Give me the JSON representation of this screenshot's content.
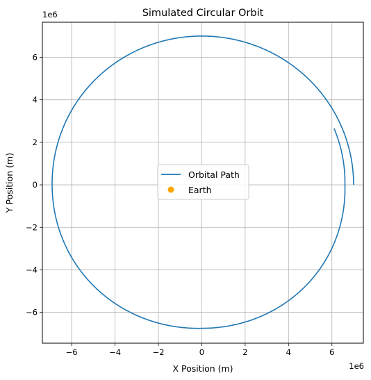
{
  "chart_data": {
    "type": "line",
    "title": "Simulated Circular Orbit",
    "xlabel": "X Position (m)",
    "ylabel": "Y Position (m)",
    "x_offset_text": "1e6",
    "y_offset_text": "1e6",
    "xlim": [
      -7.35,
      7.45
    ],
    "ylim": [
      -7.45,
      7.65
    ],
    "xticks": [
      -6,
      -4,
      -2,
      0,
      2,
      4,
      6
    ],
    "yticks": [
      -6,
      -4,
      -2,
      0,
      2,
      4,
      6
    ],
    "xtick_labels": [
      "−6",
      "−4",
      "−2",
      "0",
      "2",
      "4",
      "6"
    ],
    "ytick_labels": [
      "−6",
      "−4",
      "−2",
      "0",
      "2",
      "4",
      "6"
    ],
    "grid": true,
    "legend_position": "center",
    "scale_factor": 1000000,
    "series": [
      {
        "name": "Orbital Path",
        "style": "line",
        "color": "#1f77b4",
        "orbit": {
          "start": [
            7.0,
            0.0
          ],
          "top": [
            0.0,
            7.0
          ],
          "left": [
            -6.9,
            0.0
          ],
          "bottom": [
            0.0,
            -6.75
          ],
          "right_second_pass": [
            6.6,
            0.0
          ],
          "end": [
            6.1,
            2.65
          ]
        }
      },
      {
        "name": "Earth",
        "style": "marker",
        "color": "#ffa500",
        "points": []
      }
    ]
  }
}
